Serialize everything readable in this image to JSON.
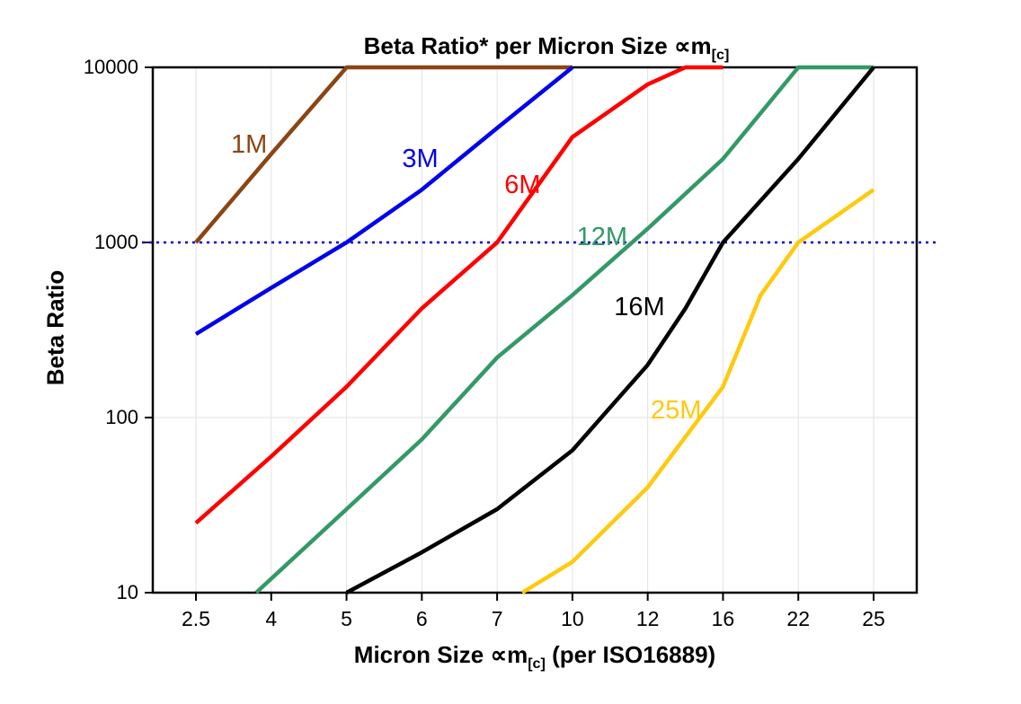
{
  "chart_data": {
    "type": "line",
    "title": {
      "main": "Beta Ratio* per Micron Size ",
      "symbol": "∝m",
      "subscript": "[c]"
    },
    "xlabel": {
      "pre": "Micron Size ",
      "symbol": "∝m",
      "subscript": "[c]",
      "post": " (per ISO16889)"
    },
    "ylabel": "Beta Ratio",
    "x_categories": [
      2.5,
      4,
      5,
      6,
      7,
      10,
      12,
      16,
      22,
      25
    ],
    "y_scale": "log",
    "y_ticks": [
      10,
      100,
      1000,
      10000
    ],
    "ylim": [
      10,
      10000
    ],
    "grid": {
      "horizontal": true,
      "vertical": true,
      "color": "#E2E2E2"
    },
    "reference_line": {
      "y": 1000,
      "color": "#0000CC",
      "style": "dotted"
    },
    "legend_position": "inline-labels",
    "series": [
      {
        "name": "1M",
        "color": "#8B4513",
        "label": {
          "text": "1M",
          "x_frac": 0.126,
          "y_frac": 0.145
        },
        "points": [
          [
            2.5,
            1000
          ],
          [
            4,
            3200
          ],
          [
            5,
            10000
          ],
          [
            10,
            10000
          ]
        ]
      },
      {
        "name": "3M",
        "color": "#0000EE",
        "label": {
          "text": "3M",
          "x_frac": 0.35,
          "y_frac": 0.173
        },
        "points": [
          [
            2.5,
            300
          ],
          [
            4,
            550
          ],
          [
            5,
            1000
          ],
          [
            6,
            2000
          ],
          [
            7,
            4500
          ],
          [
            10,
            10000
          ]
        ]
      },
      {
        "name": "6M",
        "color": "#FF0000",
        "label": {
          "text": "6M",
          "x_frac": 0.484,
          "y_frac": 0.222
        },
        "points": [
          [
            2.5,
            25
          ],
          [
            4,
            60
          ],
          [
            5,
            150
          ],
          [
            6,
            420
          ],
          [
            7,
            1000
          ],
          [
            10,
            4000
          ],
          [
            12,
            8000
          ],
          [
            14,
            10000
          ],
          [
            16,
            10000
          ]
        ]
      },
      {
        "name": "12M",
        "color": "#339966",
        "label": {
          "text": "12M",
          "x_frac": 0.588,
          "y_frac": 0.321
        },
        "points": [
          [
            3.7,
            10
          ],
          [
            5,
            30
          ],
          [
            6,
            75
          ],
          [
            7,
            220
          ],
          [
            10,
            500
          ],
          [
            12,
            1200
          ],
          [
            16,
            3000
          ],
          [
            22,
            10000
          ],
          [
            25,
            10000
          ]
        ]
      },
      {
        "name": "16M",
        "color": "#000000",
        "label": {
          "text": "16M",
          "x_frac": 0.637,
          "y_frac": 0.455
        },
        "points": [
          [
            5,
            10
          ],
          [
            6,
            17
          ],
          [
            7,
            30
          ],
          [
            10,
            65
          ],
          [
            12,
            200
          ],
          [
            14,
            420
          ],
          [
            16,
            1000
          ],
          [
            22,
            3000
          ],
          [
            25,
            10000
          ]
        ]
      },
      {
        "name": "25M",
        "color": "#FFC90E",
        "label": {
          "text": "25M",
          "x_frac": 0.685,
          "y_frac": 0.651
        },
        "points": [
          [
            8,
            10
          ],
          [
            10,
            15
          ],
          [
            12,
            40
          ],
          [
            16,
            150
          ],
          [
            19,
            500
          ],
          [
            22,
            1000
          ],
          [
            25,
            2000
          ]
        ]
      }
    ]
  }
}
